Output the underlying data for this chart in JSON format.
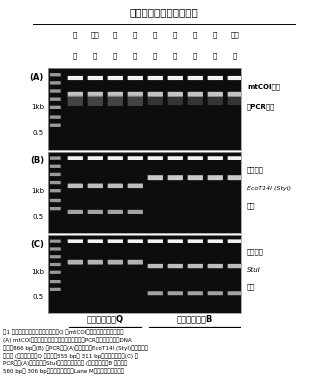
{
  "title": "タバココナジラミ個体群",
  "figure_bg": "#ffffff",
  "panel_A_label": "(A)",
  "panel_B_label": "(B)",
  "panel_C_label": "(C)",
  "right_label_A_line1": "mtCOI遺伝",
  "right_label_A_line2": "子PCR産物",
  "right_label_B_line1": "制限酵素",
  "right_label_B_line2": "EcoT14I (StyI)",
  "right_label_B_line3": "処理",
  "right_label_C_line1": "制限酵素",
  "right_label_C_line2": "StuI",
  "right_label_C_line3": "処理",
  "col_labels_row1": [
    "三",
    "宮之",
    "大",
    "松",
    "浅",
    "愛",
    "倉",
    "合",
    "鹿児"
  ],
  "col_labels_row2": [
    "原",
    "城",
    "口",
    "戸",
    "羽",
    "南",
    "敷",
    "志",
    "島"
  ],
  "biotype_Q_label": "バイオタイプQ",
  "biotype_B_label": "バイオタイプB",
  "caption_line1": "図1 タバココナジラミバイオタイプQ のmtCOI配列を用いた簡易識別法",
  "caption_line2": "(A) mtCOI特異的プライマーを用いて増幅したPCR産物の泳動像（DNA",
  "caption_line3": "断片長866 bp）(B) 各PCR産物(A)を制限酵素EcoT14I (StyI)で処理後の",
  "caption_line4": "泳動像 (バイオタイプQ の場合、555 bpと 311 bpに切断される）(C) 各",
  "caption_line5": "PCR産物(A)を制限酵素StuIで処理後の泳動像 (バイオタイプB の場合、",
  "caption_line6": "560 bpと 306 bpに切断される）。Lane M；サイズマーカー。",
  "gel_dark": "#0d0d0d",
  "gel_mid": "#2a2a2a",
  "band_bright": 0.95,
  "band_mid": 0.75,
  "band_dim": 0.55
}
